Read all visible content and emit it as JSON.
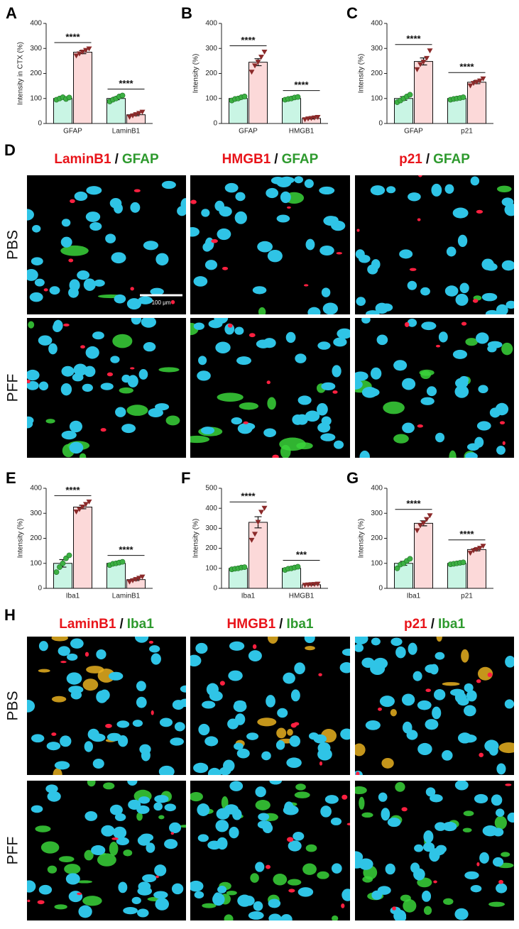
{
  "chart_data": [
    {
      "type": "bar",
      "letter": "A",
      "ylabel": "Intensity in CTX (%)",
      "categories": [
        "GFAP",
        "LaminB1"
      ],
      "significance": [
        "****",
        "****"
      ],
      "ylim": [
        0,
        400
      ],
      "yticks": [
        0,
        100,
        200,
        300,
        400
      ],
      "series": [
        {
          "color": "#c9f5e4",
          "point_color": "#3cb043",
          "values": [
            100,
            100
          ],
          "errors": [
            3,
            5
          ],
          "points": [
            [
              95,
              100,
              105,
              98,
              104
            ],
            [
              88,
              95,
              100,
              108,
              112
            ]
          ]
        },
        {
          "color": "#fcd9d9",
          "point_color": "#8b2a2a",
          "values": [
            285,
            35
          ],
          "errors": [
            6,
            4
          ],
          "points": [
            [
              270,
              278,
              285,
              292,
              298
            ],
            [
              25,
              30,
              35,
              40,
              45
            ]
          ]
        }
      ]
    },
    {
      "type": "bar",
      "letter": "B",
      "ylabel": "Intensity (%)",
      "categories": [
        "GFAP",
        "HMGB1"
      ],
      "significance": [
        "****",
        "****"
      ],
      "ylim": [
        0,
        400
      ],
      "yticks": [
        0,
        100,
        200,
        300,
        400
      ],
      "series": [
        {
          "color": "#c9f5e4",
          "point_color": "#3cb043",
          "values": [
            100,
            100
          ],
          "errors": [
            4,
            4
          ],
          "points": [
            [
              92,
              98,
              100,
              105,
              108
            ],
            [
              95,
              98,
              100,
              104,
              106
            ]
          ]
        },
        {
          "color": "#fcd9d9",
          "point_color": "#8b2a2a",
          "values": [
            245,
            20
          ],
          "errors": [
            14,
            2
          ],
          "points": [
            [
              205,
              230,
              245,
              265,
              285
            ],
            [
              15,
              18,
              20,
              22,
              24
            ]
          ]
        }
      ]
    },
    {
      "type": "bar",
      "letter": "C",
      "ylabel": "Intensity (%)",
      "categories": [
        "GFAP",
        "p21"
      ],
      "significance": [
        "****",
        "****"
      ],
      "ylim": [
        0,
        400
      ],
      "yticks": [
        0,
        100,
        200,
        300,
        400
      ],
      "series": [
        {
          "color": "#c9f5e4",
          "point_color": "#3cb043",
          "values": [
            100,
            100
          ],
          "errors": [
            7,
            3
          ],
          "points": [
            [
              85,
              92,
              100,
              108,
              115
            ],
            [
              95,
              98,
              100,
              102,
              105
            ]
          ]
        },
        {
          "color": "#fcd9d9",
          "point_color": "#8b2a2a",
          "values": [
            248,
            165
          ],
          "errors": [
            14,
            6
          ],
          "points": [
            [
              215,
              235,
              245,
              260,
              290
            ],
            [
              150,
              160,
              165,
              170,
              178
            ]
          ]
        }
      ]
    },
    {
      "type": "bar",
      "letter": "E",
      "ylabel": "Intensity (%)",
      "categories": [
        "Iba1",
        "LaminB1"
      ],
      "significance": [
        "****",
        "****"
      ],
      "ylim": [
        0,
        400
      ],
      "yticks": [
        0,
        100,
        200,
        300,
        400
      ],
      "series": [
        {
          "color": "#c9f5e4",
          "point_color": "#3cb043",
          "values": [
            100,
            100
          ],
          "errors": [
            15,
            3
          ],
          "points": [
            [
              65,
              85,
              100,
              120,
              132
            ],
            [
              93,
              98,
              100,
              103,
              106
            ]
          ]
        },
        {
          "color": "#fcd9d9",
          "point_color": "#8b2a2a",
          "values": [
            325,
            35
          ],
          "errors": [
            7,
            4
          ],
          "points": [
            [
              305,
              315,
              325,
              335,
              345
            ],
            [
              25,
              30,
              35,
              40,
              45
            ]
          ]
        }
      ]
    },
    {
      "type": "bar",
      "letter": "F",
      "ylabel": "Intensity (%)",
      "categories": [
        "Iba1",
        "HMGB1"
      ],
      "significance": [
        "****",
        "***"
      ],
      "ylim": [
        0,
        500
      ],
      "yticks": [
        0,
        100,
        200,
        300,
        400,
        500
      ],
      "series": [
        {
          "color": "#c9f5e4",
          "point_color": "#3cb043",
          "values": [
            100,
            100
          ],
          "errors": [
            4,
            4
          ],
          "points": [
            [
              95,
              98,
              100,
              104,
              106
            ],
            [
              92,
              98,
              100,
              104,
              108
            ]
          ]
        },
        {
          "color": "#fcd9d9",
          "point_color": "#8b2a2a",
          "values": [
            330,
            18
          ],
          "errors": [
            28,
            2
          ],
          "points": [
            [
              240,
              270,
              330,
              380,
              400
            ],
            [
              15,
              17,
              18,
              19,
              21
            ]
          ]
        }
      ]
    },
    {
      "type": "bar",
      "letter": "G",
      "ylabel": "Intensity (%)",
      "categories": [
        "Iba1",
        "p21"
      ],
      "significance": [
        "****",
        "****"
      ],
      "ylim": [
        0,
        400
      ],
      "yticks": [
        0,
        100,
        200,
        300,
        400
      ],
      "series": [
        {
          "color": "#c9f5e4",
          "point_color": "#3cb043",
          "values": [
            100,
            100
          ],
          "errors": [
            8,
            2
          ],
          "points": [
            [
              80,
              95,
              100,
              110,
              118
            ],
            [
              96,
              98,
              100,
              102,
              104
            ]
          ]
        },
        {
          "color": "#fcd9d9",
          "point_color": "#8b2a2a",
          "values": [
            260,
            155
          ],
          "errors": [
            10,
            5
          ],
          "points": [
            [
              230,
              250,
              260,
              275,
              290
            ],
            [
              140,
              150,
              155,
              160,
              168
            ]
          ]
        }
      ]
    }
  ],
  "panels": [
    {
      "letter": "D",
      "rows": [
        "PBS",
        "PFF"
      ],
      "scale_bar": "100 μm",
      "columns": [
        {
          "marker": "LaminB1",
          "sep": "/",
          "stain": "GFAP"
        },
        {
          "marker": "HMGB1",
          "sep": "/",
          "stain": "GFAP"
        },
        {
          "marker": "p21",
          "sep": "/",
          "stain": "GFAP"
        }
      ]
    },
    {
      "letter": "H",
      "rows": [
        "PBS",
        "PFF"
      ],
      "columns": [
        {
          "marker": "LaminB1",
          "sep": "/",
          "stain": "Iba1"
        },
        {
          "marker": "HMGB1",
          "sep": "/",
          "stain": "Iba1"
        },
        {
          "marker": "p21",
          "sep": "/",
          "stain": "Iba1"
        }
      ]
    }
  ]
}
